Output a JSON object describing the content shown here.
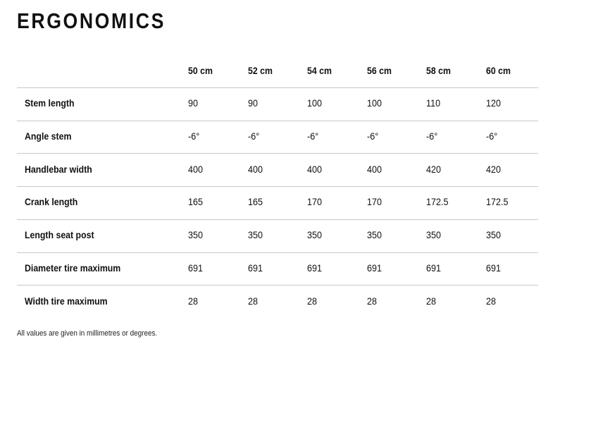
{
  "header": {
    "title": "ERGONOMICS"
  },
  "table": {
    "columns": [
      "50 cm",
      "52 cm",
      "54 cm",
      "56 cm",
      "58 cm",
      "60 cm"
    ],
    "rows": [
      {
        "label": "Stem length",
        "cells": [
          "90",
          "90",
          "100",
          "100",
          "110",
          "120"
        ]
      },
      {
        "label": "Angle stem",
        "cells": [
          "-6°",
          "-6°",
          "-6°",
          "-6°",
          "-6°",
          "-6°"
        ]
      },
      {
        "label": "Handlebar width",
        "cells": [
          "400",
          "400",
          "400",
          "400",
          "420",
          "420"
        ]
      },
      {
        "label": "Crank length",
        "cells": [
          "165",
          "165",
          "170",
          "170",
          "172.5",
          "172.5"
        ]
      },
      {
        "label": "Length seat post",
        "cells": [
          "350",
          "350",
          "350",
          "350",
          "350",
          "350"
        ]
      },
      {
        "label": "Diameter tire maximum",
        "cells": [
          "691",
          "691",
          "691",
          "691",
          "691",
          "691"
        ]
      },
      {
        "label": "Width tire maximum",
        "cells": [
          "28",
          "28",
          "28",
          "28",
          "28",
          "28"
        ]
      }
    ]
  },
  "footnote": "All values are given in millimetres or degrees."
}
